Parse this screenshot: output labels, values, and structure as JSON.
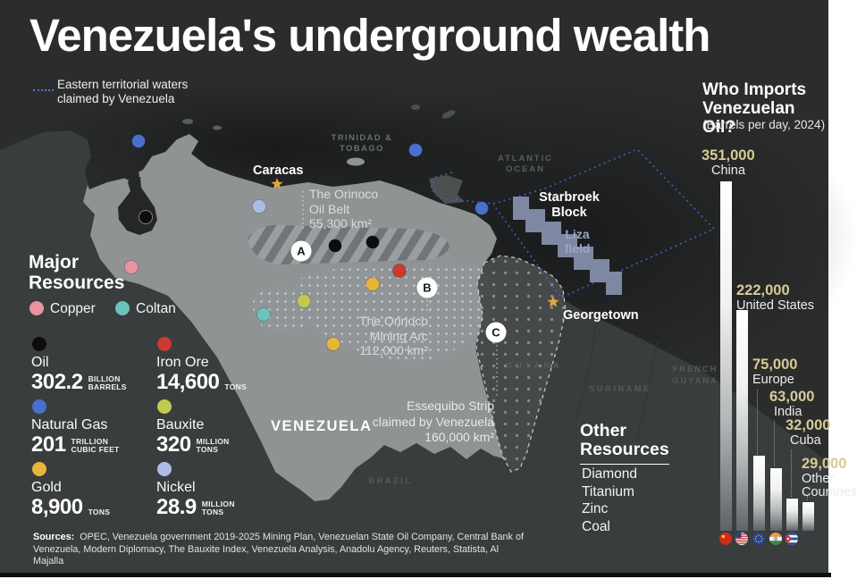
{
  "page": {
    "title": "Venezuela's underground wealth"
  },
  "waters_legend": {
    "line1": "Eastern territorial waters",
    "line2": "claimed by Venezuela"
  },
  "major_resources": {
    "heading_line1": "Major",
    "heading_line2": "Resources",
    "legend": [
      {
        "name": "Copper",
        "color": "#e794a0"
      },
      {
        "name": "Coltan",
        "color": "#6ac3bc"
      }
    ],
    "items": [
      {
        "name": "Oil",
        "color": "#0d0d0d",
        "value": "302.2",
        "unit_line1": "BILLION",
        "unit_line2": "BARRELS"
      },
      {
        "name": "Iron Ore",
        "color": "#c93a34",
        "value": "14,600",
        "unit_line1": "TONS",
        "unit_line2": ""
      },
      {
        "name": "Natural Gas",
        "color": "#4a70cd",
        "value": "201",
        "unit_line1": "TRILLION",
        "unit_line2": "CUBIC FEET"
      },
      {
        "name": "Bauxite",
        "color": "#c2c950",
        "value": "320",
        "unit_line1": "MILLION",
        "unit_line2": "TONS"
      },
      {
        "name": "Gold",
        "color": "#e7b639",
        "value": "8,900",
        "unit_line1": "TONS",
        "unit_line2": ""
      },
      {
        "name": "Nickel",
        "color": "#adbce7",
        "value": "28.9",
        "unit_line1": "MILLION",
        "unit_line2": "TONS"
      }
    ]
  },
  "other_resources": {
    "heading_line1": "Other",
    "heading_line2": "Resources",
    "items": [
      "Diamond",
      "Titanium",
      "Zinc",
      "Coal"
    ]
  },
  "map": {
    "cities": {
      "caracas": "Caracas",
      "georgetown": "Georgetown"
    },
    "labels": {
      "trinidad_line1": "TRINIDAD &",
      "trinidad_line2": "TOBAGO",
      "atlantic_line1": "ATLANTIC",
      "atlantic_line2": "OCEAN",
      "guyana": "GUYANA",
      "suriname": "SURINAME",
      "french_line1": "FRENCH",
      "french_line2": "GUYANA",
      "brazil": "BRAZIL",
      "venezuela": "VENEZUELA"
    },
    "markers": {
      "a": "A",
      "b": "B",
      "c": "C"
    },
    "oil_belt": {
      "line1": "The Orinoco",
      "line2": "Oil Belt",
      "area": "55,300 km²"
    },
    "mining_arc": {
      "line1": "The Orinoco",
      "line2": "Mining Arc",
      "area": "112,000 km²"
    },
    "essequibo": {
      "line1": "Essequibo Strip",
      "line2": "claimed by Venezuela",
      "area": "160,000 km²"
    },
    "starbroek": {
      "line1": "Starbroek",
      "line2": "Block"
    },
    "liza": {
      "line1": "Liza",
      "line2": "field"
    }
  },
  "chart_data": {
    "type": "bar",
    "title_line1": "Who Imports",
    "title_line2": "Venezuelan Oil?",
    "subtitle": "(Barrels per day, 2024)",
    "categories": [
      "China",
      "United States",
      "Europe",
      "India",
      "Cuba",
      "Other Countries"
    ],
    "values": [
      351000,
      222000,
      75000,
      63000,
      32000,
      29000
    ],
    "value_labels": [
      "351,000",
      "222,000",
      "75,000",
      "63,000",
      "32,000",
      "29,000"
    ],
    "ylim": [
      0,
      351000
    ],
    "legend_position": "none",
    "value_color": "#d6cc96",
    "flags": [
      "china",
      "united-states",
      "european-union",
      "india",
      "cuba"
    ]
  },
  "sources": {
    "label": "Sources:",
    "text": "OPEC, Venezuela government 2019-2025 Mining Plan, Venezuelan State Oil Company, Central Bank of Venezuela, Modern Diplomacy, The Bauxite Index, Venezuela Analysis, Anadolu Agency, Reuters, Statista, Al Majalla"
  }
}
